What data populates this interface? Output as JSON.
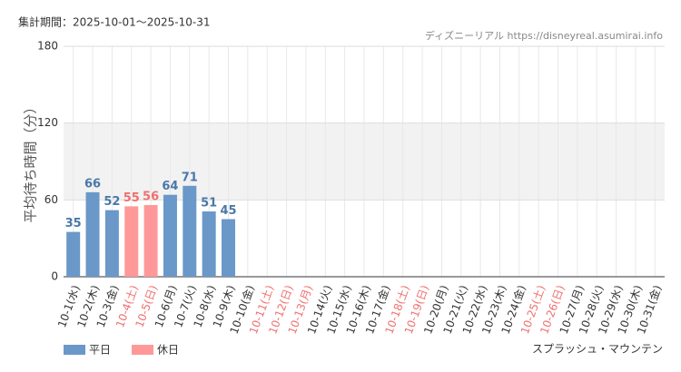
{
  "chart_data": {
    "type": "bar",
    "subtitle": "集計期間：2025-10-01～2025-10-31",
    "source": "ディズニーリアル https://disneyreal.asumirai.info",
    "y_label": "平均待ち時間（分）",
    "attraction": "スプラッシュ・マウンテン",
    "categories": [
      "10-1(水)",
      "10-2(木)",
      "10-3(金)",
      "10-4(土)",
      "10-5(日)",
      "10-6(月)",
      "10-7(火)",
      "10-8(水)",
      "10-9(木)",
      "10-10(金)",
      "10-11(土)",
      "10-12(日)",
      "10-13(月)",
      "10-14(火)",
      "10-15(水)",
      "10-16(木)",
      "10-17(金)",
      "10-18(土)",
      "10-19(日)",
      "10-20(月)",
      "10-21(火)",
      "10-22(水)",
      "10-23(木)",
      "10-24(金)",
      "10-25(土)",
      "10-26(日)",
      "10-27(月)",
      "10-28(火)",
      "10-29(水)",
      "10-30(木)",
      "10-31(金)"
    ],
    "category_label_colors": [
      "#333",
      "#333",
      "#333",
      "#f07070",
      "#f07070",
      "#333",
      "#333",
      "#333",
      "#333",
      "#333",
      "#f07070",
      "#f07070",
      "#f07070",
      "#333",
      "#333",
      "#333",
      "#333",
      "#f07070",
      "#f07070",
      "#333",
      "#333",
      "#333",
      "#333",
      "#333",
      "#f07070",
      "#f07070",
      "#333",
      "#333",
      "#333",
      "#333",
      "#333"
    ],
    "series": [
      {
        "name": "平日",
        "color": "#6a98c8",
        "label_color": "#4a78a8",
        "values": [
          35,
          66,
          52,
          null,
          null,
          64,
          71,
          51,
          45,
          null,
          null,
          null,
          null,
          null,
          null,
          null,
          null,
          null,
          null,
          null,
          null,
          null,
          null,
          null,
          null,
          null,
          null,
          null,
          null,
          null,
          null
        ]
      },
      {
        "name": "休日",
        "color": "#ff9999",
        "label_color": "#f07070",
        "values": [
          null,
          null,
          null,
          55,
          56,
          null,
          null,
          null,
          null,
          null,
          null,
          null,
          null,
          null,
          null,
          null,
          null,
          null,
          null,
          null,
          null,
          null,
          null,
          null,
          null,
          null,
          null,
          null,
          null,
          null,
          null
        ]
      }
    ],
    "ylim": [
      0,
      180
    ],
    "yticks": [
      0,
      60,
      120,
      180
    ],
    "shaded_range": [
      60,
      120
    ],
    "grid": true
  }
}
